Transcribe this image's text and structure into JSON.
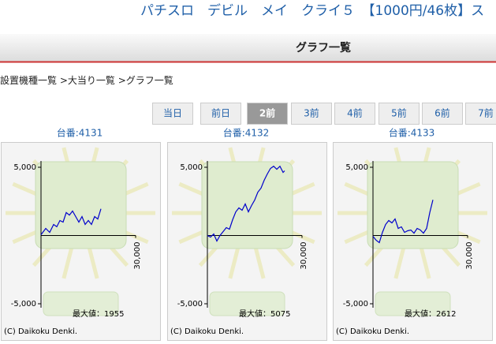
{
  "header": {
    "title": "パチスロ　デビル　メイ　クライ５　【1000円/46枚】ス"
  },
  "section_title": "グラフ一覧",
  "breadcrumb": [
    "設置機種一覧",
    " >大当り一覧",
    " >グラフ一覧"
  ],
  "tabs": [
    {
      "label": "当日"
    },
    {
      "label": "前日"
    },
    {
      "label": "2前",
      "active": true
    },
    {
      "label": "3前"
    },
    {
      "label": "4前"
    },
    {
      "label": "5前"
    },
    {
      "label": "6前"
    },
    {
      "label": "7前"
    }
  ],
  "machines": [
    {
      "label": "台番:4131",
      "max_label": "最大値：1955",
      "copyright": "(C) Daikoku Denki.",
      "chart": {
        "type": "line",
        "color": "#0000cc",
        "xlim": [
          0,
          30000
        ],
        "ylim": [
          -5000,
          5000
        ],
        "xticks": [
          {
            "value": 30000,
            "label": "30,000"
          }
        ],
        "yticks": [
          {
            "value": 5000,
            "label": "5,000"
          },
          {
            "value": -5000,
            "label": "-5,000"
          }
        ],
        "x": [
          0,
          1500,
          2750,
          4000,
          5000,
          6000,
          7000,
          8000,
          9000,
          10000,
          11000,
          12000,
          13000,
          14000,
          15000,
          16000,
          17000,
          18000,
          19000
        ],
        "values": [
          58,
          520,
          230,
          810,
          640,
          1100,
          980,
          1680,
          1500,
          1790,
          1390,
          980,
          1390,
          810,
          1100,
          810,
          1390,
          1210,
          1955
        ]
      }
    },
    {
      "label": "台番:4132",
      "max_label": "最大値：5075",
      "copyright": "(C) Daikoku Denki.",
      "chart": {
        "type": "line",
        "color": "#0000cc",
        "xlim": [
          0,
          30000
        ],
        "ylim": [
          -5000,
          5000
        ],
        "xticks": [
          {
            "value": 30000,
            "label": "30,000"
          }
        ],
        "yticks": [
          {
            "value": 5000,
            "label": "5,000"
          },
          {
            "value": -5000,
            "label": "-5,000"
          }
        ],
        "x": [
          0,
          1000,
          2000,
          3000,
          4000,
          5000,
          6000,
          7000,
          8000,
          9000,
          10000,
          11000,
          12000,
          13000,
          14000,
          15000,
          16000,
          17000,
          18000,
          19000,
          20000,
          21000,
          22000,
          23000,
          24000,
          24500
        ],
        "values": [
          0,
          -116,
          116,
          -405,
          0,
          289,
          578,
          462,
          1156,
          1734,
          2023,
          1850,
          2312,
          1734,
          2196,
          2601,
          3179,
          3468,
          4046,
          4509,
          4913,
          5075,
          4855,
          5075,
          4624,
          4740
        ]
      }
    },
    {
      "label": "台番:4133",
      "max_label": "最大値：2612",
      "copyright": "(C) Daikoku Denki.",
      "chart": {
        "type": "line",
        "color": "#0000cc",
        "xlim": [
          0,
          30000
        ],
        "ylim": [
          -5000,
          5000
        ],
        "xticks": [
          {
            "value": 30000,
            "label": "30,000"
          }
        ],
        "yticks": [
          {
            "value": 5000,
            "label": "5,000"
          },
          {
            "value": -5000,
            "label": "-5,000"
          }
        ],
        "x": [
          0,
          1000,
          2000,
          3000,
          4000,
          5000,
          6000,
          7000,
          8000,
          9000,
          10000,
          11000,
          12000,
          13000,
          14000,
          15000,
          16000,
          17000,
          18000,
          19000
        ],
        "values": [
          -58,
          -347,
          -520,
          231,
          809,
          1098,
          925,
          1214,
          520,
          636,
          231,
          347,
          405,
          173,
          520,
          405,
          173,
          520,
          1676,
          2612
        ]
      }
    }
  ]
}
